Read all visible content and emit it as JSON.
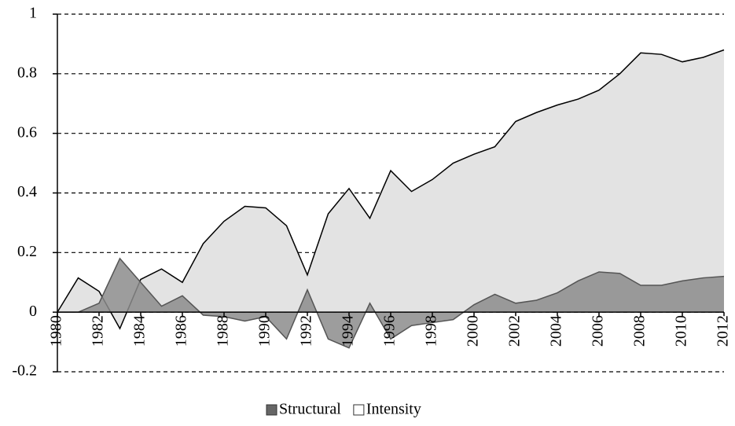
{
  "chart_data": {
    "type": "area",
    "x": [
      1980,
      1981,
      1982,
      1983,
      1984,
      1985,
      1986,
      1987,
      1988,
      1989,
      1990,
      1991,
      1992,
      1993,
      1994,
      1995,
      1996,
      1997,
      1998,
      1999,
      2000,
      2001,
      2002,
      2003,
      2004,
      2005,
      2006,
      2007,
      2008,
      2009,
      2010,
      2011,
      2012
    ],
    "xlim": [
      1980,
      2012
    ],
    "xticks": [
      1980,
      1982,
      1984,
      1986,
      1988,
      1990,
      1992,
      1994,
      1996,
      1998,
      2000,
      2002,
      2004,
      2006,
      2008,
      2010,
      2012
    ],
    "ylim": [
      -0.2,
      1
    ],
    "yticks": [
      -0.2,
      0,
      0.2,
      0.4,
      0.6,
      0.8,
      1
    ],
    "grid": true,
    "legend": "bottom",
    "series": [
      {
        "name": "Intensity",
        "color": "#e3e3e3",
        "line_color": "#000000",
        "values": [
          0,
          0.115,
          0.07,
          -0.055,
          0.11,
          0.145,
          0.1,
          0.23,
          0.305,
          0.355,
          0.35,
          0.29,
          0.125,
          0.33,
          0.415,
          0.315,
          0.475,
          0.405,
          0.445,
          0.5,
          0.53,
          0.555,
          0.64,
          0.67,
          0.695,
          0.715,
          0.745,
          0.8,
          0.87,
          0.865,
          0.84,
          0.855,
          0.88
        ]
      },
      {
        "name": "Structural",
        "color": "#8c8c8c",
        "line_color": "#555555",
        "values": [
          0,
          0,
          0.03,
          0.18,
          0.1,
          0.02,
          0.055,
          -0.01,
          -0.015,
          -0.03,
          -0.015,
          -0.09,
          0.075,
          -0.09,
          -0.12,
          0.03,
          -0.09,
          -0.045,
          -0.035,
          -0.025,
          0.025,
          0.06,
          0.03,
          0.04,
          0.065,
          0.105,
          0.135,
          0.13,
          0.09,
          0.09,
          0.105,
          0.115,
          0.12
        ]
      }
    ]
  }
}
